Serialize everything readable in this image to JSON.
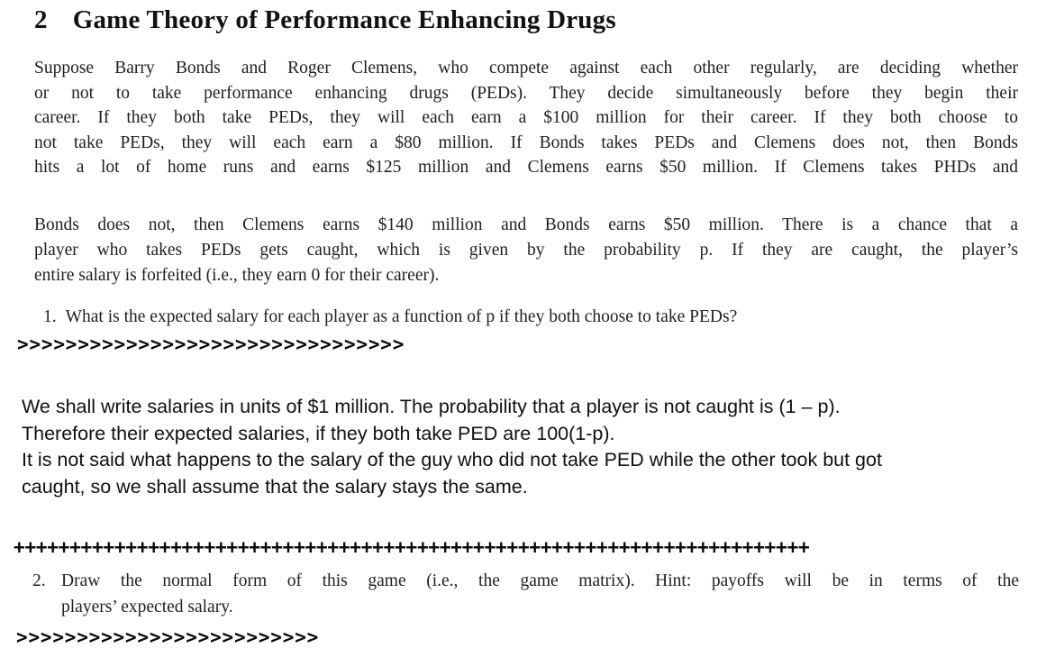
{
  "document": {
    "heading": {
      "number": "2",
      "title": "Game Theory of Performance Enhancing Drugs"
    },
    "problem_statement_part1": {
      "lines": [
        "Suppose Barry Bonds and Roger Clemens, who compete against each other regularly, are deciding whether",
        "or not to take performance enhancing drugs (PEDs).  They decide simultaneously before they begin their",
        "career.  If they both take PEDs, they will each earn a $100 million for their career.  If they both choose to",
        "not take PEDs, they will each earn a $80 million.  If Bonds takes PEDs and Clemens does not, then Bonds",
        "hits a lot of home runs and earns $125 million and Clemens earns $50 million.  If Clemens takes PHDs and"
      ]
    },
    "problem_statement_part2": {
      "lines": [
        "Bonds does not, then Clemens earns $140 million and Bonds earns $50 million.  There is a chance that a",
        "player who takes PEDs gets caught, which is given by the probability p.  If they are caught, the player’s",
        "entire salary is forfeited (i.e., they earn 0 for their career)."
      ]
    },
    "question1": {
      "number": "1.",
      "text": "What is the expected salary for each player as a function of p if they both choose to take PEDs?"
    },
    "question2": {
      "number": "2.",
      "line1": "Draw the normal form of this game (i.e., the game matrix).  Hint: payoffs will be in terms of the",
      "line2": "players’ expected salary."
    },
    "answer": {
      "lines": [
        "We shall write salaries in units of $1 million. The probability that a player is not caught is (1 – p).",
        "Therefore their expected salaries, if they both take PED are 100(1-p).",
        "It is not said what happens to the salary of the guy who did not take PED while the other took but got",
        "caught, so we shall assume that the salary stays the same."
      ]
    },
    "separators": {
      "chevrons1": ">>>>>>>>>>>>>>>>>>>>>>>>>>>>>>>>",
      "plus": "+++++++++++++++++++++++++++++++++++++++++++++++++++++++++++++++++++++++",
      "chevrons2": ">>>>>>>>>>>>>>>>>>>>>>>>>"
    },
    "colors": {
      "background": "#ffffff",
      "text": "#1c1c1c"
    }
  }
}
